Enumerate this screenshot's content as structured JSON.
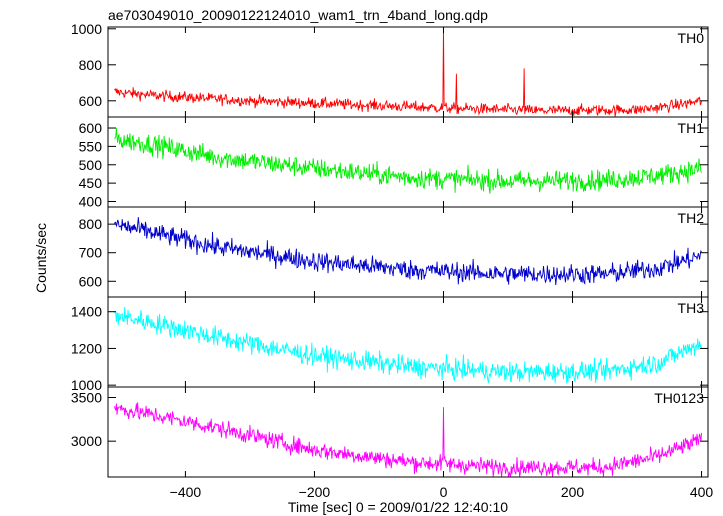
{
  "chart_data": {
    "type": "line",
    "title": "ae703049010_20090122124010_wam1_trn_4band_long.qdp",
    "xlabel": "Time [sec] 0 = 2009/01/22 12:40:10",
    "ylabel": "Counts/sec",
    "xlim": [
      -520,
      410
    ],
    "xticks": [
      -400,
      -200,
      0,
      200,
      400
    ],
    "x_step": 1,
    "grid": false,
    "legend": "none",
    "panels": [
      {
        "label": "TH0",
        "color": "#ff0000",
        "ylim": [
          510,
          1010
        ],
        "yticks": [
          600,
          800,
          1000
        ],
        "trend": {
          "x": [
            -510,
            -450,
            -300,
            -150,
            0,
            150,
            300,
            350,
            400
          ],
          "y": [
            650,
            630,
            600,
            580,
            560,
            545,
            550,
            570,
            600
          ]
        },
        "noise": 22,
        "spikes": [
          {
            "x": 0,
            "y": 1010
          },
          {
            "x": 20,
            "y": 750
          },
          {
            "x": 125,
            "y": 780
          }
        ]
      },
      {
        "label": "TH1",
        "color": "#00ee00",
        "ylim": [
          385,
          630
        ],
        "yticks": [
          400,
          450,
          500,
          550,
          600
        ],
        "trend": {
          "x": [
            -510,
            -450,
            -350,
            -200,
            -50,
            100,
            250,
            330,
            400
          ],
          "y": [
            570,
            555,
            520,
            490,
            465,
            455,
            458,
            470,
            490
          ]
        },
        "noise": 20,
        "spikes": []
      },
      {
        "label": "TH2",
        "color": "#0000cc",
        "ylim": [
          545,
          860
        ],
        "yticks": [
          600,
          700,
          800
        ],
        "trend": {
          "x": [
            -510,
            -450,
            -350,
            -200,
            -50,
            100,
            250,
            330,
            400
          ],
          "y": [
            800,
            770,
            720,
            670,
            640,
            625,
            625,
            645,
            690
          ]
        },
        "noise": 25,
        "spikes": []
      },
      {
        "label": "TH3",
        "color": "#00ffff",
        "ylim": [
          990,
          1480
        ],
        "yticks": [
          1000,
          1200,
          1400
        ],
        "trend": {
          "x": [
            -510,
            -450,
            -350,
            -200,
            -50,
            100,
            250,
            330,
            400
          ],
          "y": [
            1380,
            1340,
            1260,
            1160,
            1100,
            1070,
            1075,
            1120,
            1230
          ]
        },
        "noise": 40,
        "spikes": []
      },
      {
        "label": "TH0123",
        "color": "#ff00ff",
        "ylim": [
          2590,
          3620
        ],
        "yticks": [
          3000,
          3500
        ],
        "trend": {
          "x": [
            -510,
            -450,
            -350,
            -200,
            -50,
            100,
            250,
            330,
            400
          ],
          "y": [
            3380,
            3300,
            3150,
            2900,
            2760,
            2700,
            2700,
            2820,
            3020
          ]
        },
        "noise": 70,
        "spikes": [
          {
            "x": 0,
            "y": 3390
          }
        ]
      }
    ]
  }
}
